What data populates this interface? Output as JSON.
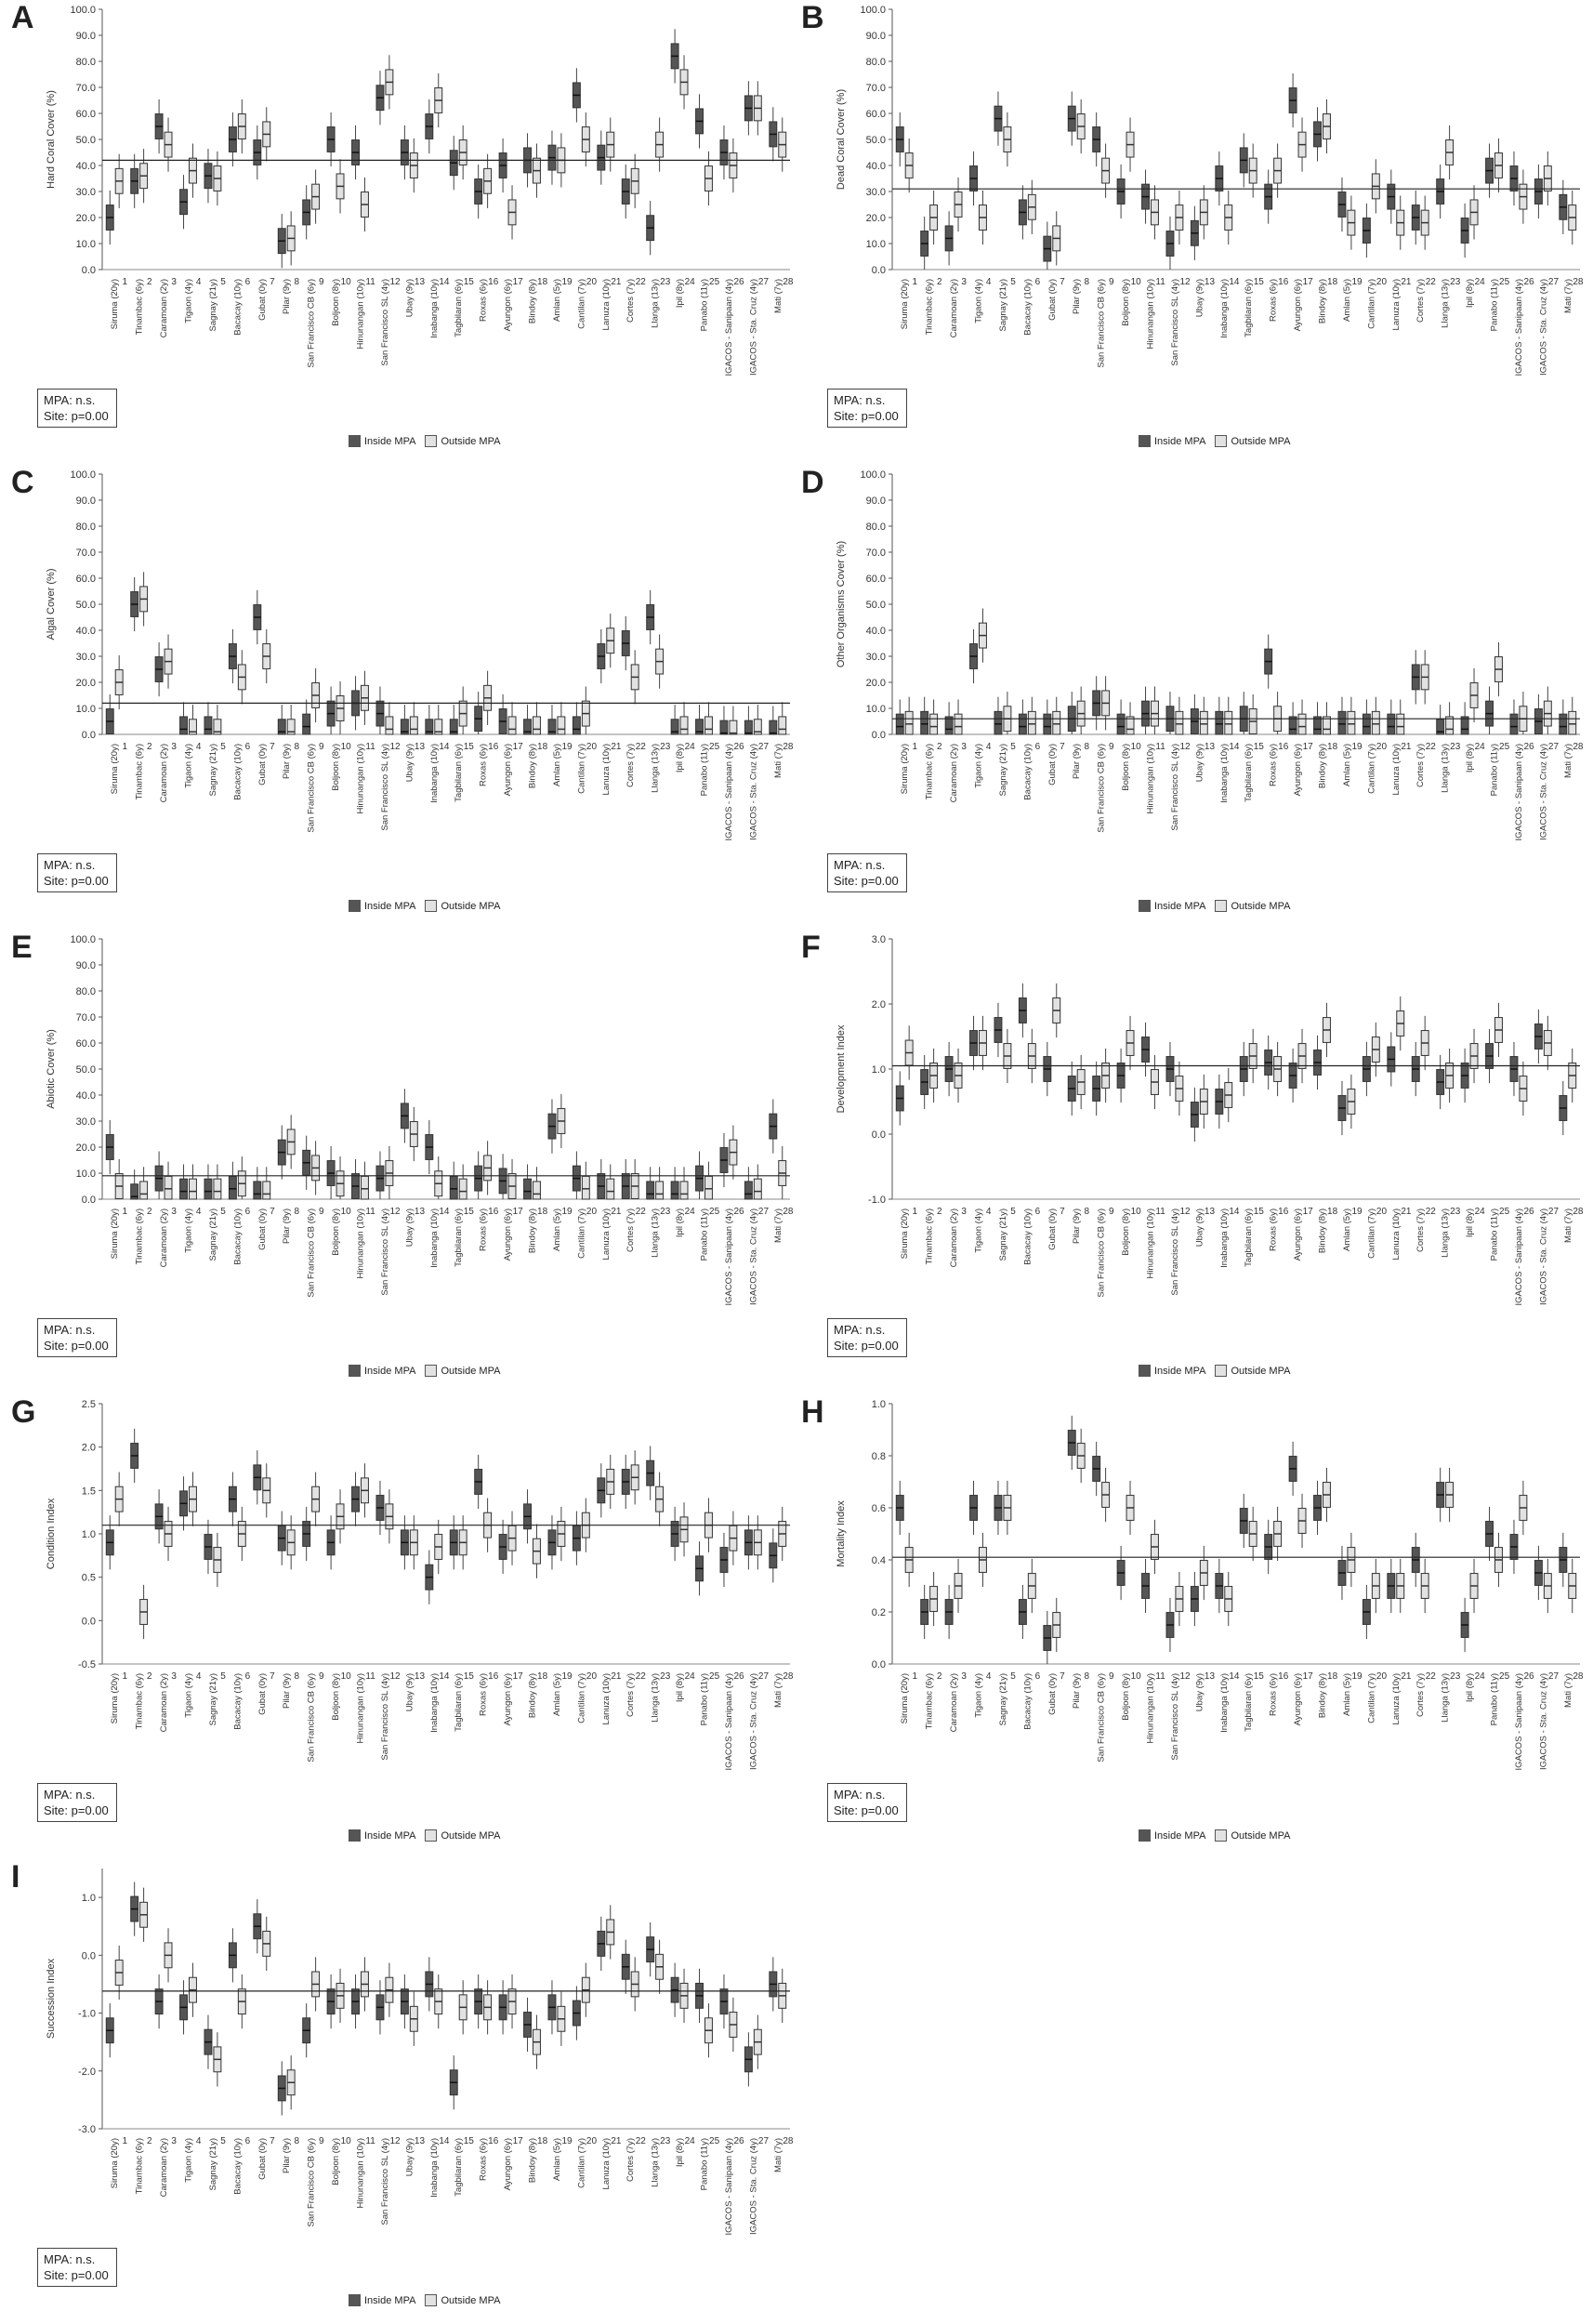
{
  "legend": {
    "inside": "Inside MPA",
    "outside": "Outside MPA",
    "inside_color": "#555555",
    "outside_color": "#e2e2e2"
  },
  "stats": {
    "mpa": "MPA: n.s.",
    "site": "Site: p=0.00"
  },
  "sites": [
    "Siruma (20y)",
    "Tinambac (6y)",
    "Caramoan (2y)",
    "Tigaon (4y)",
    "Sagnay (21y)",
    "Bacacay (10y)",
    "Gubat (0y)",
    "Pilar (9y)",
    "San Francisco CB (6y)",
    "Boljoon (8y)",
    "Hinunangan (10y)",
    "San Francisco SL (4y)",
    "Ubay (9y)",
    "Inabanga (10y)",
    "Tagbilaran (6y)",
    "Roxas (6y)",
    "Ayungon (6y)",
    "Bindoy (8y)",
    "Amlan (5y)",
    "Cantilan (7y)",
    "Lanuza (10y)",
    "Cortes (7y)",
    "Llanga (13y)",
    "Ipil (8y)",
    "Panabo (11y)",
    "IGACOS - Sanipaan (4y)",
    "IGACOS - Sta. Cruz (4y)",
    "Mati (7y)"
  ],
  "site_numbers": [
    "1",
    "2",
    "3",
    "4",
    "5",
    "6",
    "7",
    "8",
    "9",
    "10",
    "11",
    "12",
    "13",
    "14",
    "15",
    "16",
    "17",
    "18",
    "19",
    "20",
    "21",
    "22",
    "23",
    "24",
    "25",
    "26",
    "27",
    "28"
  ],
  "chart_data": [
    {
      "letter": "A",
      "type": "box",
      "ylabel": "Hard Coral Cover (%)",
      "ylim": [
        0,
        100
      ],
      "ticks": [
        "0.0",
        "10.0",
        "20.0",
        "30.0",
        "40.0",
        "50.0",
        "60.0",
        "70.0",
        "80.0",
        "90.0",
        "100.0"
      ],
      "mean": 42,
      "inside": [
        20,
        34,
        55,
        26,
        36,
        50,
        45,
        11,
        22,
        50,
        45,
        66,
        45,
        55,
        41,
        30,
        40,
        42,
        43,
        67,
        43,
        30,
        16,
        82,
        57,
        45,
        62,
        52
      ],
      "outside": [
        34,
        36,
        48,
        38,
        35,
        55,
        52,
        12,
        28,
        32,
        25,
        72,
        40,
        65,
        45,
        34,
        22,
        38,
        42,
        50,
        48,
        34,
        48,
        72,
        35,
        40,
        62,
        48
      ]
    },
    {
      "letter": "B",
      "type": "box",
      "ylabel": "Dead Coral Cover (%)",
      "ylim": [
        0,
        100
      ],
      "ticks": [
        "0.0",
        "10.0",
        "20.0",
        "30.0",
        "40.0",
        "50.0",
        "60.0",
        "70.0",
        "80.0",
        "90.0",
        "100.0"
      ],
      "mean": 31,
      "inside": [
        50,
        10,
        12,
        35,
        58,
        22,
        8,
        58,
        50,
        30,
        28,
        10,
        14,
        35,
        42,
        28,
        65,
        52,
        25,
        15,
        28,
        20,
        30,
        15,
        38,
        35,
        30,
        24
      ],
      "outside": [
        40,
        20,
        25,
        20,
        50,
        24,
        12,
        55,
        38,
        48,
        22,
        20,
        22,
        20,
        38,
        38,
        48,
        55,
        18,
        32,
        18,
        18,
        45,
        22,
        40,
        28,
        35,
        20
      ]
    },
    {
      "letter": "C",
      "type": "box",
      "ylabel": "Algal Cover (%)",
      "ylim": [
        0,
        100
      ],
      "ticks": [
        "0.0",
        "10.0",
        "20.0",
        "30.0",
        "40.0",
        "50.0",
        "60.0",
        "70.0",
        "80.0",
        "90.0",
        "100.0"
      ],
      "mean": 12,
      "inside": [
        5,
        50,
        25,
        2,
        2,
        30,
        45,
        1,
        3,
        8,
        12,
        8,
        1,
        1,
        1,
        6,
        5,
        1,
        1,
        2,
        30,
        35,
        45,
        1,
        1,
        0.5,
        0.5,
        0.5
      ],
      "outside": [
        20,
        52,
        28,
        1,
        1,
        22,
        30,
        1,
        15,
        10,
        14,
        2,
        2,
        1,
        8,
        14,
        2,
        2,
        2,
        8,
        36,
        22,
        28,
        2,
        2,
        0.5,
        1,
        2
      ]
    },
    {
      "letter": "D",
      "type": "box",
      "ylabel": "Other Organisms Cover (%)",
      "ylim": [
        0,
        100
      ],
      "ticks": [
        "0.0",
        "10.0",
        "20.0",
        "30.0",
        "40.0",
        "50.0",
        "60.0",
        "70.0",
        "80.0",
        "90.0",
        "100.0"
      ],
      "mean": 6,
      "inside": [
        3,
        4,
        2,
        30,
        4,
        3,
        3,
        6,
        12,
        3,
        8,
        6,
        5,
        4,
        6,
        28,
        2,
        2,
        4,
        3,
        3,
        22,
        1,
        2,
        8,
        3,
        5,
        3
      ],
      "outside": [
        4,
        3,
        3,
        38,
        6,
        4,
        4,
        8,
        12,
        2,
        8,
        4,
        4,
        4,
        5,
        6,
        3,
        2,
        4,
        4,
        3,
        22,
        2,
        15,
        25,
        6,
        8,
        4
      ]
    },
    {
      "letter": "E",
      "type": "box",
      "ylabel": "Abiotic Cover (%)",
      "ylim": [
        0,
        100
      ],
      "ticks": [
        "0.0",
        "10.0",
        "20.0",
        "30.0",
        "40.0",
        "50.0",
        "60.0",
        "70.0",
        "80.0",
        "90.0",
        "100.0"
      ],
      "mean": 9,
      "inside": [
        20,
        1,
        8,
        3,
        3,
        4,
        2,
        18,
        14,
        10,
        5,
        8,
        32,
        20,
        4,
        8,
        7,
        3,
        28,
        8,
        5,
        5,
        2,
        2,
        8,
        15,
        2,
        28
      ],
      "outside": [
        5,
        2,
        4,
        3,
        3,
        6,
        2,
        22,
        12,
        6,
        4,
        10,
        25,
        6,
        3,
        12,
        5,
        2,
        30,
        4,
        3,
        5,
        2,
        2,
        4,
        18,
        3,
        10
      ]
    },
    {
      "letter": "F",
      "type": "box",
      "ylabel": "Development Index",
      "ylim": [
        -1,
        3
      ],
      "ticks": [
        "-1.0",
        "0.0",
        "1.0",
        "2.0",
        "3.0"
      ],
      "mean": 1.05,
      "inside": [
        0.55,
        0.8,
        1.0,
        1.4,
        1.6,
        1.9,
        1.0,
        0.7,
        0.7,
        0.9,
        1.3,
        1.0,
        0.3,
        0.5,
        1.0,
        1.1,
        0.9,
        1.1,
        0.4,
        1.0,
        1.15,
        1.0,
        0.8,
        0.9,
        1.2,
        1.0,
        1.5,
        0.4
      ],
      "outside": [
        1.25,
        0.9,
        0.9,
        1.4,
        1.2,
        1.2,
        1.9,
        0.8,
        0.9,
        1.4,
        0.8,
        0.7,
        0.5,
        0.6,
        1.2,
        1.0,
        1.2,
        1.6,
        0.5,
        1.3,
        1.7,
        1.4,
        0.9,
        1.2,
        1.6,
        0.7,
        1.4,
        0.9
      ]
    },
    {
      "letter": "G",
      "type": "box",
      "ylabel": "Condition Index",
      "ylim": [
        -0.5,
        2.5
      ],
      "ticks": [
        "-0.5",
        "0.0",
        "0.5",
        "1.0",
        "1.5",
        "2.0",
        "2.5"
      ],
      "mean": 1.1,
      "inside": [
        0.9,
        1.9,
        1.2,
        1.35,
        0.85,
        1.4,
        1.65,
        0.95,
        1.0,
        0.9,
        1.4,
        1.3,
        0.9,
        0.5,
        0.9,
        1.6,
        0.85,
        1.2,
        0.9,
        0.95,
        1.5,
        1.6,
        1.7,
        1.0,
        0.6,
        0.7,
        0.9,
        0.75
      ],
      "outside": [
        1.4,
        0.1,
        1.0,
        1.4,
        0.7,
        1.0,
        1.5,
        0.9,
        1.4,
        1.2,
        1.5,
        1.2,
        0.9,
        0.85,
        0.9,
        1.1,
        0.95,
        0.8,
        1.0,
        1.1,
        1.6,
        1.65,
        1.4,
        1.05,
        1.1,
        0.95,
        0.9,
        1.0
      ]
    },
    {
      "letter": "H",
      "type": "box",
      "ylabel": "Mortality Index",
      "ylim": [
        0,
        1
      ],
      "ticks": [
        "0.0",
        "0.2",
        "0.4",
        "0.6",
        "0.8",
        "1.0"
      ],
      "mean": 0.41,
      "inside": [
        0.6,
        0.2,
        0.2,
        0.6,
        0.6,
        0.2,
        0.1,
        0.85,
        0.75,
        0.35,
        0.3,
        0.15,
        0.25,
        0.3,
        0.55,
        0.45,
        0.75,
        0.6,
        0.35,
        0.2,
        0.3,
        0.4,
        0.65,
        0.15,
        0.5,
        0.45,
        0.35,
        0.4
      ],
      "outside": [
        0.4,
        0.25,
        0.3,
        0.4,
        0.6,
        0.3,
        0.15,
        0.8,
        0.65,
        0.6,
        0.45,
        0.25,
        0.35,
        0.25,
        0.5,
        0.5,
        0.55,
        0.65,
        0.4,
        0.3,
        0.3,
        0.3,
        0.65,
        0.3,
        0.4,
        0.6,
        0.3,
        0.3
      ]
    },
    {
      "letter": "I",
      "type": "box",
      "ylabel": "Succession Index",
      "ylim": [
        -3,
        1.5
      ],
      "ticks": [
        "-3.0",
        "-2.0",
        "-1.0",
        "0.0",
        "1.0"
      ],
      "mean": -0.62,
      "inside": [
        -1.3,
        0.8,
        -0.8,
        -0.9,
        -1.5,
        0.0,
        0.5,
        -2.3,
        -1.3,
        -0.8,
        -0.8,
        -0.9,
        -0.8,
        -0.5,
        -2.2,
        -0.8,
        -0.9,
        -1.2,
        -0.9,
        -1.0,
        0.2,
        -0.2,
        0.1,
        -0.6,
        -0.7,
        -0.8,
        -1.8,
        -0.5
      ],
      "outside": [
        -0.3,
        0.7,
        0.0,
        -0.6,
        -1.8,
        -0.8,
        0.2,
        -2.2,
        -0.5,
        -0.7,
        -0.5,
        -0.6,
        -1.1,
        -0.8,
        -0.9,
        -0.9,
        -0.8,
        -1.5,
        -1.1,
        -0.6,
        0.4,
        -0.5,
        -0.2,
        -0.7,
        -1.3,
        -1.2,
        -1.5,
        -0.7
      ]
    }
  ]
}
